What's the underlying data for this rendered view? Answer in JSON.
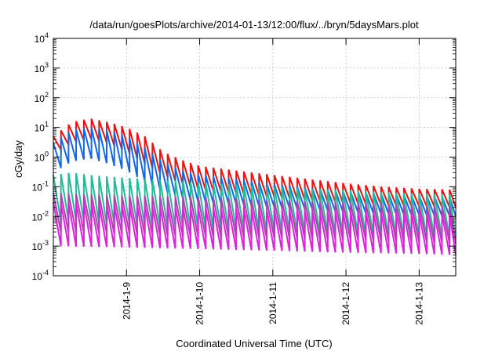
{
  "chart_data": {
    "type": "line",
    "title": "/data/run/goesPlots/archive/2014-01-13/12:00/flux/../bryn/5daysMars.plot",
    "xlabel": "Coordinated Universal Time (UTC)",
    "ylabel": "cGy/day",
    "yscale": "log",
    "ylim": [
      0.0001,
      10000
    ],
    "y_ticks": [
      {
        "value": 0.0001,
        "base": "10",
        "exp": "-4"
      },
      {
        "value": 0.001,
        "base": "10",
        "exp": "-3"
      },
      {
        "value": 0.01,
        "base": "10",
        "exp": "-2"
      },
      {
        "value": 0.1,
        "base": "10",
        "exp": "-1"
      },
      {
        "value": 1,
        "base": "10",
        "exp": "0"
      },
      {
        "value": 10,
        "base": "10",
        "exp": "1"
      },
      {
        "value": 100,
        "base": "10",
        "exp": "2"
      },
      {
        "value": 1000,
        "base": "10",
        "exp": "3"
      },
      {
        "value": 10000,
        "base": "10",
        "exp": "4"
      }
    ],
    "xlim": [
      "2014-01-08 00:00",
      "2014-01-13 12:00"
    ],
    "x_ticks": [
      "2014-1-9",
      "2014-1-10",
      "2014-1-11",
      "2014-1-12",
      "2014-1-13"
    ],
    "grid": true,
    "sawtooth_period_hours": 2.5,
    "series": [
      {
        "color": "#ee1111",
        "x": [
          "2014-01-08 00:00",
          "2014-01-08 06:00",
          "2014-01-08 12:00",
          "2014-01-08 18:00",
          "2014-01-09 00:00",
          "2014-01-09 06:00",
          "2014-01-09 12:00",
          "2014-01-09 18:00",
          "2014-01-10 00:00",
          "2014-01-10 12:00",
          "2014-01-11 00:00",
          "2014-01-11 12:00",
          "2014-01-12 00:00",
          "2014-01-12 12:00",
          "2014-01-13 00:00",
          "2014-01-13 12:00"
        ],
        "peak": [
          5,
          15,
          20,
          15,
          10,
          5,
          1.5,
          0.8,
          0.5,
          0.35,
          0.25,
          0.18,
          0.13,
          0.1,
          0.085,
          0.08
        ],
        "trough": [
          1.2,
          3,
          4,
          3,
          1.5,
          0.6,
          0.25,
          0.12,
          0.08,
          0.06,
          0.045,
          0.035,
          0.028,
          0.024,
          0.022,
          0.02
        ]
      },
      {
        "color": "#1166ee",
        "x": [
          "2014-01-08 00:00",
          "2014-01-08 06:00",
          "2014-01-08 12:00",
          "2014-01-08 18:00",
          "2014-01-09 00:00",
          "2014-01-09 06:00",
          "2014-01-09 12:00",
          "2014-01-09 18:00",
          "2014-01-10 00:00",
          "2014-01-10 12:00",
          "2014-01-11 00:00",
          "2014-01-11 12:00",
          "2014-01-12 00:00",
          "2014-01-12 12:00",
          "2014-01-13 00:00",
          "2014-01-13 12:00"
        ],
        "peak": [
          3,
          8,
          10,
          8,
          5,
          2,
          0.7,
          0.35,
          0.25,
          0.18,
          0.12,
          0.09,
          0.07,
          0.06,
          0.05,
          0.045
        ],
        "trough": [
          0.3,
          0.7,
          0.9,
          0.6,
          0.35,
          0.15,
          0.07,
          0.04,
          0.03,
          0.025,
          0.02,
          0.017,
          0.014,
          0.012,
          0.011,
          0.01
        ]
      },
      {
        "color": "#22bb99",
        "x": [
          "2014-01-08 00:00",
          "2014-01-08 06:00",
          "2014-01-08 12:00",
          "2014-01-08 18:00",
          "2014-01-09 00:00",
          "2014-01-09 12:00",
          "2014-01-10 00:00",
          "2014-01-10 12:00",
          "2014-01-11 00:00",
          "2014-01-11 12:00",
          "2014-01-12 00:00",
          "2014-01-12 12:00",
          "2014-01-13 00:00",
          "2014-01-13 12:00"
        ],
        "peak": [
          0.25,
          0.3,
          0.25,
          0.22,
          0.2,
          0.17,
          0.14,
          0.12,
          0.1,
          0.085,
          0.075,
          0.065,
          0.06,
          0.055
        ],
        "trough": [
          0.006,
          0.007,
          0.006,
          0.0055,
          0.005,
          0.0045,
          0.004,
          0.0035,
          0.003,
          0.0027,
          0.0025,
          0.0022,
          0.002,
          0.0018
        ]
      },
      {
        "color": "#aa44aa",
        "x": [
          "2014-01-08 00:00",
          "2014-01-09 00:00",
          "2014-01-10 00:00",
          "2014-01-11 00:00",
          "2014-01-12 00:00",
          "2014-01-13 00:00",
          "2014-01-13 12:00"
        ],
        "peak": [
          0.06,
          0.05,
          0.045,
          0.035,
          0.03,
          0.025,
          0.022
        ],
        "trough": [
          0.003,
          0.0025,
          0.002,
          0.0018,
          0.0016,
          0.0013,
          0.0012
        ]
      },
      {
        "color": "#dd22dd",
        "x": [
          "2014-01-08 00:00",
          "2014-01-09 00:00",
          "2014-01-10 00:00",
          "2014-01-11 00:00",
          "2014-01-12 00:00",
          "2014-01-13 00:00",
          "2014-01-13 12:00"
        ],
        "peak": [
          0.03,
          0.025,
          0.02,
          0.017,
          0.015,
          0.013,
          0.012
        ],
        "trough": [
          0.001,
          0.0009,
          0.0008,
          0.0007,
          0.0006,
          0.00055,
          0.0005
        ]
      }
    ]
  }
}
